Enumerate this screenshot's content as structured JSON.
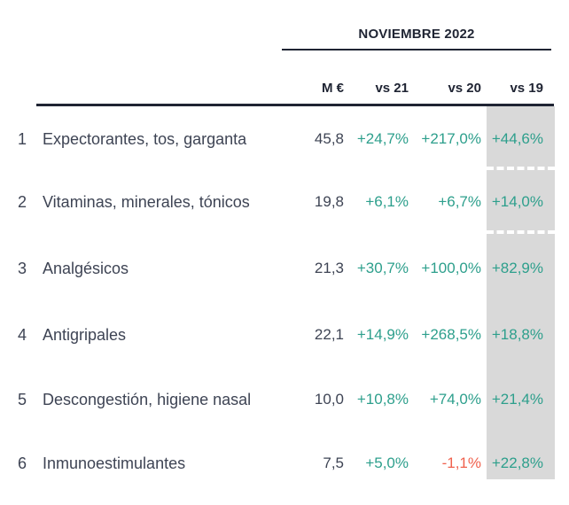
{
  "colors": {
    "positive": "#2d9f8c",
    "negative": "#f0614d",
    "text": "#3e4454",
    "header": "#1f2433",
    "highlight_band": "#d9d9d9"
  },
  "chart_data": {
    "type": "table",
    "title": "NOVIEMBRE 2022",
    "columns": {
      "m_eur": "M €",
      "vs21": "vs 21",
      "vs20": "vs 20",
      "vs19": "vs 19"
    },
    "highlighted_column": "vs 19",
    "rows": [
      {
        "rank": "1",
        "label": "Expectorantes, tos, garganta",
        "m_eur": "45,8",
        "vs21": "+24,7%",
        "vs20": "+217,0%",
        "vs19": "+44,6%"
      },
      {
        "rank": "2",
        "label": "Vitaminas, minerales, tónicos",
        "m_eur": "19,8",
        "vs21": "+6,1%",
        "vs20": "+6,7%",
        "vs19": "+14,0%"
      },
      {
        "rank": "3",
        "label": "Analgésicos",
        "m_eur": "21,3",
        "vs21": "+30,7%",
        "vs20": "+100,0%",
        "vs19": "+82,9%"
      },
      {
        "rank": "4",
        "label": "Antigripales",
        "m_eur": "22,1",
        "vs21": "+14,9%",
        "vs20": "+268,5%",
        "vs19": "+18,8%"
      },
      {
        "rank": "5",
        "label": "Descongestión, higiene nasal",
        "m_eur": "10,0",
        "vs21": "+10,8%",
        "vs20": "+74,0%",
        "vs19": "+21,4%"
      },
      {
        "rank": "6",
        "label": "Inmunoestimulantes",
        "m_eur": "7,5",
        "vs21": "+5,0%",
        "vs20": "-1,1%",
        "vs19": "+22,8%"
      }
    ]
  }
}
